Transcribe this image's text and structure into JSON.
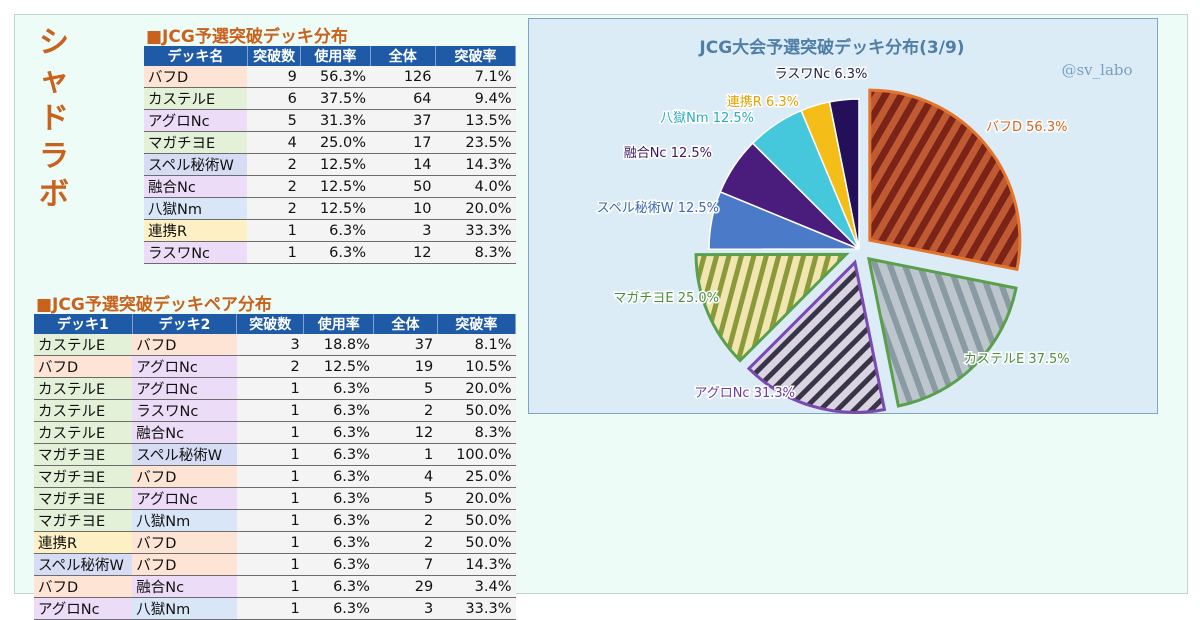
{
  "side_title": [
    "シ",
    "ャ",
    "ド",
    "ラ",
    "ボ"
  ],
  "deck_colors": {
    "バフD": "#fde4d4",
    "カステルE": "#e4f1d9",
    "アグロNc": "#ecdcf8",
    "マガチヨE": "#e4f1d9",
    "スペル秘術W": "#d6dcf4",
    "融合Nc": "#ecdcf8",
    "八獄Nm": "#d9e6f7",
    "連携R": "#fdf0c4",
    "ラスワNc": "#ecdcf8"
  },
  "table1": {
    "title": "■JCG予選突破デッキ分布",
    "headers": [
      "デッキ名",
      "突破数",
      "使用率",
      "全体",
      "突破率"
    ],
    "rows": [
      [
        "バフD",
        "9",
        "56.3%",
        "126",
        "7.1%"
      ],
      [
        "カステルE",
        "6",
        "37.5%",
        "64",
        "9.4%"
      ],
      [
        "アグロNc",
        "5",
        "31.3%",
        "37",
        "13.5%"
      ],
      [
        "マガチヨE",
        "4",
        "25.0%",
        "17",
        "23.5%"
      ],
      [
        "スペル秘術W",
        "2",
        "12.5%",
        "14",
        "14.3%"
      ],
      [
        "融合Nc",
        "2",
        "12.5%",
        "50",
        "4.0%"
      ],
      [
        "八獄Nm",
        "2",
        "12.5%",
        "10",
        "20.0%"
      ],
      [
        "連携R",
        "1",
        "6.3%",
        "3",
        "33.3%"
      ],
      [
        "ラスワNc",
        "1",
        "6.3%",
        "12",
        "8.3%"
      ]
    ]
  },
  "table2": {
    "title": "■JCG予選突破デッキペア分布",
    "headers": [
      "デッキ1",
      "デッキ2",
      "突破数",
      "使用率",
      "全体",
      "突破率"
    ],
    "rows": [
      [
        "カステルE",
        "バフD",
        "3",
        "18.8%",
        "37",
        "8.1%"
      ],
      [
        "バフD",
        "アグロNc",
        "2",
        "12.5%",
        "19",
        "10.5%"
      ],
      [
        "カステルE",
        "アグロNc",
        "1",
        "6.3%",
        "5",
        "20.0%"
      ],
      [
        "カステルE",
        "ラスワNc",
        "1",
        "6.3%",
        "2",
        "50.0%"
      ],
      [
        "カステルE",
        "融合Nc",
        "1",
        "6.3%",
        "12",
        "8.3%"
      ],
      [
        "マガチヨE",
        "スペル秘術W",
        "1",
        "6.3%",
        "1",
        "100.0%"
      ],
      [
        "マガチヨE",
        "バフD",
        "1",
        "6.3%",
        "4",
        "25.0%"
      ],
      [
        "マガチヨE",
        "アグロNc",
        "1",
        "6.3%",
        "5",
        "20.0%"
      ],
      [
        "マガチヨE",
        "八獄Nm",
        "1",
        "6.3%",
        "2",
        "50.0%"
      ],
      [
        "連携R",
        "バフD",
        "1",
        "6.3%",
        "2",
        "50.0%"
      ],
      [
        "スペル秘術W",
        "バフD",
        "1",
        "6.3%",
        "7",
        "14.3%"
      ],
      [
        "バフD",
        "融合Nc",
        "1",
        "6.3%",
        "29",
        "3.4%"
      ],
      [
        "アグロNc",
        "八獄Nm",
        "1",
        "6.3%",
        "3",
        "33.3%"
      ]
    ]
  },
  "chart_data": {
    "type": "pie",
    "title": "JCG大会予選突破デッキ分布(3/9)",
    "watermark": "@sv_labo",
    "slices": [
      {
        "label": "バフD 56.3%",
        "value": 56.3,
        "color": "#e3752e",
        "text_color": "#d0641e",
        "pattern": "#b54a2a"
      },
      {
        "label": "カステルE 37.5%",
        "value": 37.5,
        "color": "#5aa04c",
        "text_color": "#4e8e40",
        "pattern": "#9aa6ae"
      },
      {
        "label": "アグロNc 31.3%",
        "value": 31.3,
        "color": "#7b4ab0",
        "text_color": "#6a3ea0",
        "pattern": "#8a8aa8"
      },
      {
        "label": "マガチヨE 25.0%",
        "value": 25.0,
        "color": "#5aa04c",
        "text_color": "#4e8e40",
        "pattern": "#d6b85a"
      },
      {
        "label": "スペル秘術W 12.5%",
        "value": 12.5,
        "color": "#4a7ac8",
        "text_color": "#3a68b4"
      },
      {
        "label": "融合Nc 12.5%",
        "value": 12.5,
        "color": "#4a1c7c",
        "text_color": "#3c1a66"
      },
      {
        "label": "八獄Nm 12.5%",
        "value": 12.5,
        "color": "#46c8dc",
        "text_color": "#2aaac0"
      },
      {
        "label": "連携R 6.3%",
        "value": 6.3,
        "color": "#f4bd18",
        "text_color": "#e0a400"
      },
      {
        "label": "ラスワNc 6.3%",
        "value": 6.3,
        "color": "#24105a",
        "text_color": "#1e1e50"
      }
    ]
  }
}
